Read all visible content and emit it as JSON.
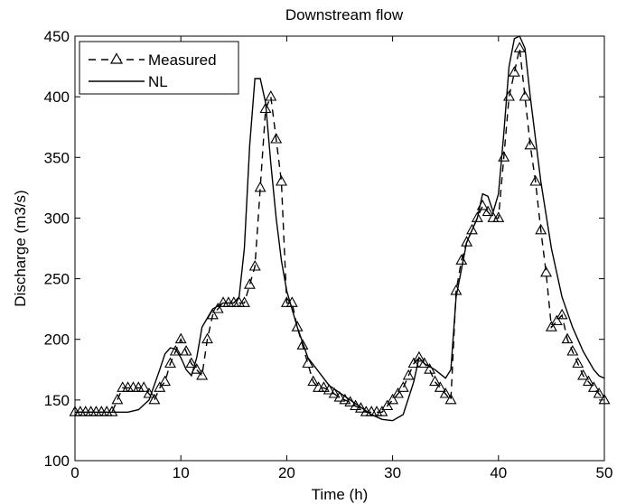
{
  "chart_data": {
    "type": "line",
    "title": "Downstream flow",
    "xlabel": "Time (h)",
    "ylabel": "Discharge (m3/s)",
    "xlim": [
      0,
      50
    ],
    "ylim": [
      100,
      450
    ],
    "xticks": [
      0,
      10,
      20,
      30,
      40,
      50
    ],
    "yticks": [
      100,
      150,
      200,
      250,
      300,
      350,
      400,
      450
    ],
    "grid": false,
    "legend_position": "top-left",
    "series": [
      {
        "name": "Measured",
        "style": "dashed-triangle",
        "color": "#000000",
        "x": [
          0,
          0.5,
          1,
          1.5,
          2,
          2.5,
          3,
          3.5,
          4,
          4.5,
          5,
          5.5,
          6,
          6.5,
          7,
          7.5,
          8,
          8.5,
          9,
          9.5,
          10,
          10.5,
          11,
          11.5,
          12,
          12.5,
          13,
          13.5,
          14,
          14.5,
          15,
          15.5,
          16,
          16.5,
          17,
          17.5,
          18,
          18.5,
          19,
          19.5,
          20,
          20.5,
          21,
          21.5,
          22,
          22.5,
          23,
          23.5,
          24,
          24.5,
          25,
          25.5,
          26,
          26.5,
          27,
          27.5,
          28,
          28.5,
          29,
          29.5,
          30,
          30.5,
          31,
          31.5,
          32,
          32.5,
          33,
          33.5,
          34,
          34.5,
          35,
          35.5,
          36,
          36.5,
          37,
          37.5,
          38,
          38.5,
          39,
          39.5,
          40,
          40.5,
          41,
          41.5,
          42,
          42.5,
          43,
          43.5,
          44,
          44.5,
          45,
          45.5,
          46,
          46.5,
          47,
          47.5,
          48,
          48.5,
          49,
          49.5,
          50
        ],
        "y": [
          140,
          140,
          140,
          140,
          140,
          140,
          140,
          140,
          150,
          160,
          160,
          160,
          160,
          160,
          155,
          150,
          160,
          165,
          180,
          190,
          200,
          190,
          180,
          175,
          170,
          200,
          220,
          225,
          230,
          230,
          230,
          230,
          230,
          245,
          260,
          325,
          390,
          400,
          365,
          330,
          230,
          230,
          210,
          195,
          180,
          165,
          160,
          160,
          158,
          155,
          152,
          150,
          148,
          145,
          143,
          140,
          140,
          140,
          140,
          145,
          150,
          155,
          160,
          170,
          180,
          185,
          180,
          175,
          165,
          160,
          155,
          150,
          240,
          265,
          280,
          290,
          300,
          310,
          305,
          300,
          300,
          350,
          400,
          420,
          440,
          400,
          360,
          330,
          290,
          255,
          210,
          215,
          220,
          200,
          190,
          180,
          170,
          165,
          160,
          155,
          150
        ]
      },
      {
        "name": "NL",
        "style": "solid",
        "color": "#000000",
        "x": [
          0,
          3,
          5,
          6,
          7,
          8,
          8.5,
          9,
          9.5,
          10,
          10.5,
          11,
          11.5,
          12,
          13,
          14,
          15,
          15.5,
          16,
          16.5,
          17,
          17.5,
          18,
          18.5,
          19,
          19.5,
          20,
          21,
          22,
          24,
          26,
          28,
          29,
          30,
          31,
          32,
          32.5,
          33,
          34,
          35,
          35.5,
          36,
          37,
          38,
          38.5,
          39,
          39.5,
          40,
          40.5,
          41,
          41.5,
          42,
          42.5,
          43,
          44,
          45,
          46,
          47,
          48,
          49,
          49.5,
          50
        ],
        "y": [
          140,
          140,
          140,
          142,
          150,
          175,
          188,
          193,
          192,
          185,
          175,
          170,
          185,
          210,
          225,
          230,
          230,
          235,
          275,
          360,
          415,
          415,
          395,
          345,
          300,
          265,
          240,
          210,
          185,
          162,
          150,
          138,
          134,
          133,
          138,
          165,
          185,
          180,
          175,
          168,
          175,
          235,
          280,
          300,
          320,
          318,
          305,
          320,
          370,
          425,
          448,
          450,
          440,
          400,
          330,
          275,
          235,
          210,
          190,
          175,
          170,
          168
        ]
      }
    ]
  }
}
